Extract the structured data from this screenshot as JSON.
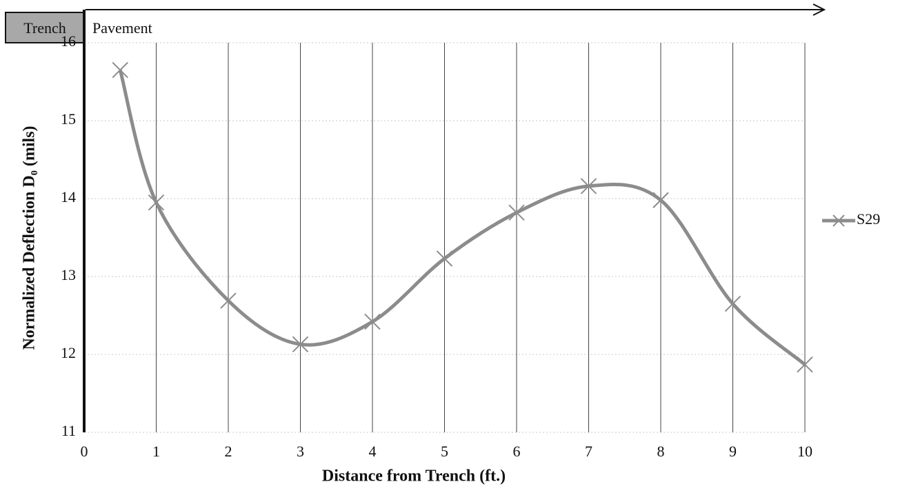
{
  "chart_data": {
    "type": "line",
    "x_label": "Distance from Trench (ft.)",
    "y_label": "Normalized Deflection D₀ (mils)",
    "annotations": [
      "Trench",
      "Pavement"
    ],
    "x": [
      0.5,
      1,
      2,
      3,
      4,
      5,
      6,
      7,
      8,
      9,
      10
    ],
    "series": [
      {
        "name": "S29",
        "color": "#8c8c8c",
        "values": [
          15.65,
          13.95,
          12.69,
          12.13,
          12.42,
          13.23,
          13.82,
          14.16,
          13.98,
          12.65,
          11.87
        ]
      }
    ],
    "xlim": [
      0,
      10
    ],
    "xticks": [
      0,
      1,
      2,
      3,
      4,
      5,
      6,
      7,
      8,
      9,
      10
    ],
    "ylim": [
      11,
      16
    ],
    "yticks": [
      11,
      12,
      13,
      14,
      15,
      16
    ],
    "grid": true,
    "legend": "right",
    "smooth": true
  }
}
